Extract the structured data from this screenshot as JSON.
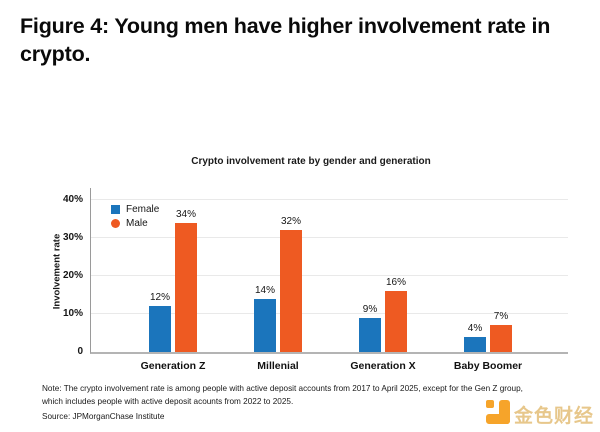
{
  "figure": {
    "title": "Figure 4: Young men have higher involvement rate in crypto.",
    "note_line1": "Note: The crypto involvement rate is among people with active deposit accounts from 2017 to April 2025, except for the Gen Z group,",
    "note_line2": "which includes people with active deposit acounts from 2022 to 2025.",
    "source": "Source: JPMorganChase Institute"
  },
  "chart_data": {
    "type": "bar",
    "title": "Crypto involvement rate by gender and generation",
    "categories": [
      "Generation Z",
      "Millenial",
      "Generation X",
      "Baby Boomer"
    ],
    "series": [
      {
        "name": "Female",
        "values": [
          12,
          14,
          9,
          4
        ],
        "color": "#1B75BC",
        "marker": "square"
      },
      {
        "name": "Male",
        "values": [
          34,
          32,
          16,
          7
        ],
        "color": "#EE5A22",
        "marker": "circle"
      }
    ],
    "value_suffix": "%",
    "xlabel": "",
    "ylabel": "Involvement rate",
    "yticks": [
      {
        "v": 0,
        "label": "0"
      },
      {
        "v": 10,
        "label": "10%"
      },
      {
        "v": 20,
        "label": "20%"
      },
      {
        "v": 30,
        "label": "30%"
      },
      {
        "v": 40,
        "label": "40%"
      }
    ],
    "ylim": [
      0,
      43.7
    ],
    "grid": true,
    "legend_position": "top-left"
  },
  "watermark": {
    "brand": "金色财经",
    "icon_color": "#F6A42A",
    "text_color": "#E7C78B"
  }
}
